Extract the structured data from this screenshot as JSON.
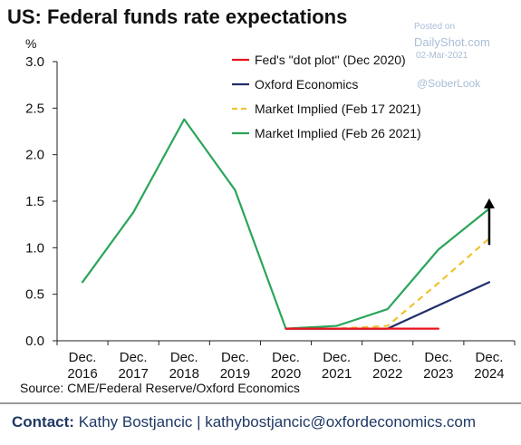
{
  "header": {
    "title": "US: Federal funds rate expectations",
    "unit": "%"
  },
  "watermark": {
    "posted_on": "Posted on",
    "site": "DailyShot.com",
    "date": "02-Mar-2021",
    "handle": "@SoberLook"
  },
  "footer": {
    "source": "Source: CME/Federal Reserve/Oxford Economics",
    "contact_label": "Contact:",
    "contact_text": "Kathy Bostjancic | kathybostjancic@oxfordeconomics.com"
  },
  "chart_data": {
    "type": "line",
    "categories": [
      [
        "Dec.",
        "2016"
      ],
      [
        "Dec.",
        "2017"
      ],
      [
        "Dec.",
        "2018"
      ],
      [
        "Dec.",
        "2019"
      ],
      [
        "Dec.",
        "2020"
      ],
      [
        "Dec.",
        "2021"
      ],
      [
        "Dec.",
        "2022"
      ],
      [
        "Dec.",
        "2023"
      ],
      [
        "Dec.",
        "2024"
      ]
    ],
    "ylim": [
      0,
      3.0
    ],
    "yticks": [
      "0.0",
      "0.5",
      "1.0",
      "1.5",
      "2.0",
      "2.5",
      "3.0"
    ],
    "legend_position": "top-right",
    "series": [
      {
        "name": "Fed's \"dot plot\" (Dec 2020)",
        "color": "#e8141c",
        "dash": "solid",
        "values": [
          null,
          null,
          null,
          null,
          0.13,
          0.13,
          0.13,
          0.13,
          null
        ]
      },
      {
        "name": "Oxford Economics",
        "color": "#1f2d6b",
        "dash": "solid",
        "values": [
          null,
          null,
          null,
          null,
          0.13,
          0.13,
          0.13,
          0.38,
          0.63
        ]
      },
      {
        "name": "Market Implied (Feb 17 2021)",
        "color": "#f0c330",
        "dash": "dashed",
        "values": [
          null,
          null,
          null,
          null,
          0.13,
          0.13,
          0.16,
          0.62,
          1.1
        ]
      },
      {
        "name": "Market Implied (Feb 26 2021)",
        "color": "#2aa55a",
        "dash": "solid",
        "values": [
          0.63,
          1.38,
          2.38,
          1.62,
          0.13,
          0.16,
          0.34,
          0.98,
          1.42
        ]
      }
    ],
    "annotation": {
      "type": "arrow-up",
      "category_index": 8,
      "from": 1.03,
      "to": 1.53,
      "color": "#000000"
    }
  }
}
